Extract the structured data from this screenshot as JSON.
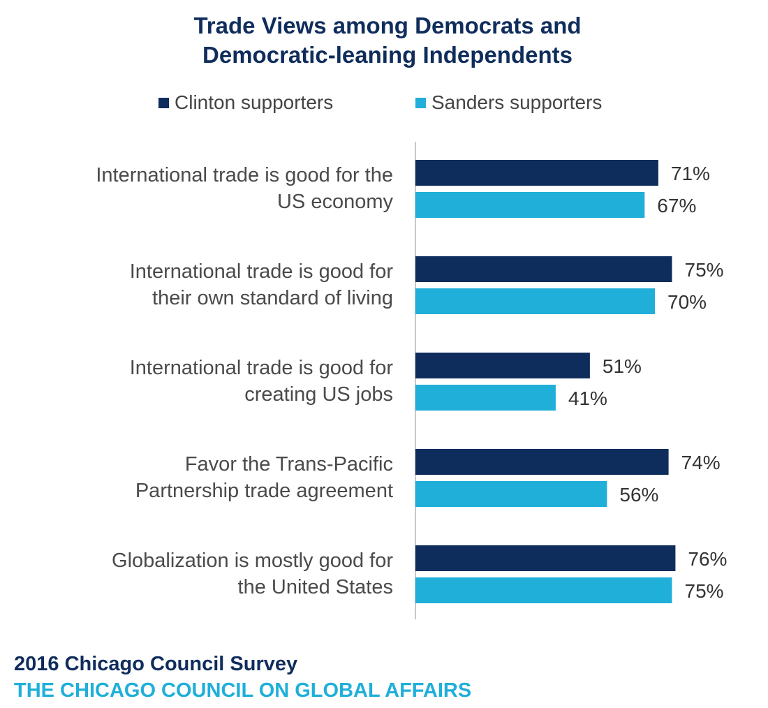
{
  "chart_data": {
    "type": "bar",
    "orientation": "horizontal",
    "title": "Trade Views among Democrats and Democratic-leaning Independents",
    "title_lines": [
      "Trade Views among Democrats and",
      "Democratic-leaning Independents"
    ],
    "categories": [
      [
        "International trade is good for the",
        "US economy"
      ],
      [
        "International trade is good for",
        "their own standard of living"
      ],
      [
        "International trade is good for",
        "creating US jobs"
      ],
      [
        "Favor the Trans-Pacific",
        "Partnership trade agreement"
      ],
      [
        "Globalization is mostly good for",
        "the United States"
      ]
    ],
    "series": [
      {
        "name": "Clinton supporters",
        "color": "#0f2d5c",
        "values": [
          71,
          75,
          51,
          74,
          76
        ],
        "labels": [
          "71%",
          "75%",
          "51%",
          "74%",
          "76%"
        ]
      },
      {
        "name": "Sanders supporters",
        "color": "#1fafd9",
        "values": [
          67,
          70,
          41,
          56,
          75
        ],
        "labels": [
          "67%",
          "70%",
          "41%",
          "56%",
          "75%"
        ]
      }
    ],
    "xlim": [
      0,
      100
    ],
    "legend_position": "top",
    "grid": false
  },
  "footer": {
    "survey": "2016 Chicago Council Survey",
    "organization": "THE CHICAGO COUNCIL ON GLOBAL AFFAIRS"
  }
}
